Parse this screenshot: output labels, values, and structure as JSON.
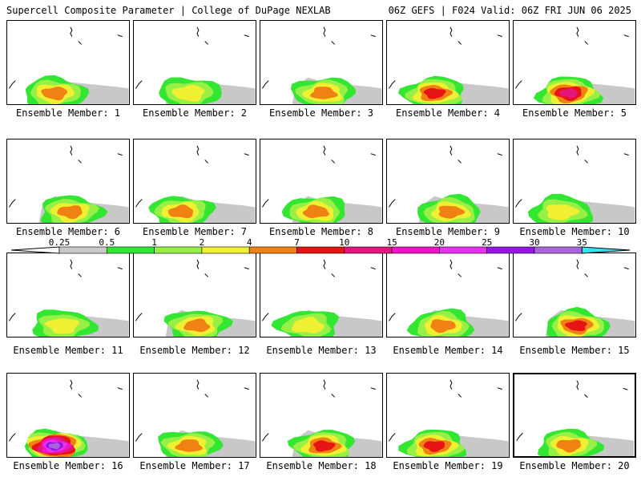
{
  "header": {
    "title": "Supercell Composite Parameter | College of DuPage NEXLAB",
    "run_info": "06Z GEFS | F024 Valid: 06Z FRI JUN 06 2025"
  },
  "member_label_prefix": "Ensemble Member:",
  "members": [
    {
      "number": "1",
      "max": 4
    },
    {
      "number": "2",
      "max": 2
    },
    {
      "number": "3",
      "max": 4
    },
    {
      "number": "4",
      "max": 7
    },
    {
      "number": "5",
      "max": 10
    },
    {
      "number": "6",
      "max": 4
    },
    {
      "number": "7",
      "max": 4
    },
    {
      "number": "8",
      "max": 4
    },
    {
      "number": "9",
      "max": 4
    },
    {
      "number": "10",
      "max": 2
    },
    {
      "number": "11",
      "max": 2
    },
    {
      "number": "12",
      "max": 4
    },
    {
      "number": "13",
      "max": 2
    },
    {
      "number": "14",
      "max": 4
    },
    {
      "number": "15",
      "max": 7
    },
    {
      "number": "16",
      "max": 30
    },
    {
      "number": "17",
      "max": 4
    },
    {
      "number": "18",
      "max": 7
    },
    {
      "number": "19",
      "max": 7
    },
    {
      "number": "20",
      "max": 4
    }
  ],
  "selected_member": "20",
  "legend": {
    "thresholds": [
      "0.25",
      "0.5",
      "1",
      "2",
      "4",
      "7",
      "10",
      "15",
      "20",
      "25",
      "30",
      "35"
    ],
    "colors": [
      "#c8c8c8",
      "#32e632",
      "#96f046",
      "#f0f032",
      "#f08214",
      "#e61414",
      "#e6147d",
      "#f014c8",
      "#e632f0",
      "#9614e6",
      "#aa64dc",
      "#32e6f0"
    ]
  }
}
